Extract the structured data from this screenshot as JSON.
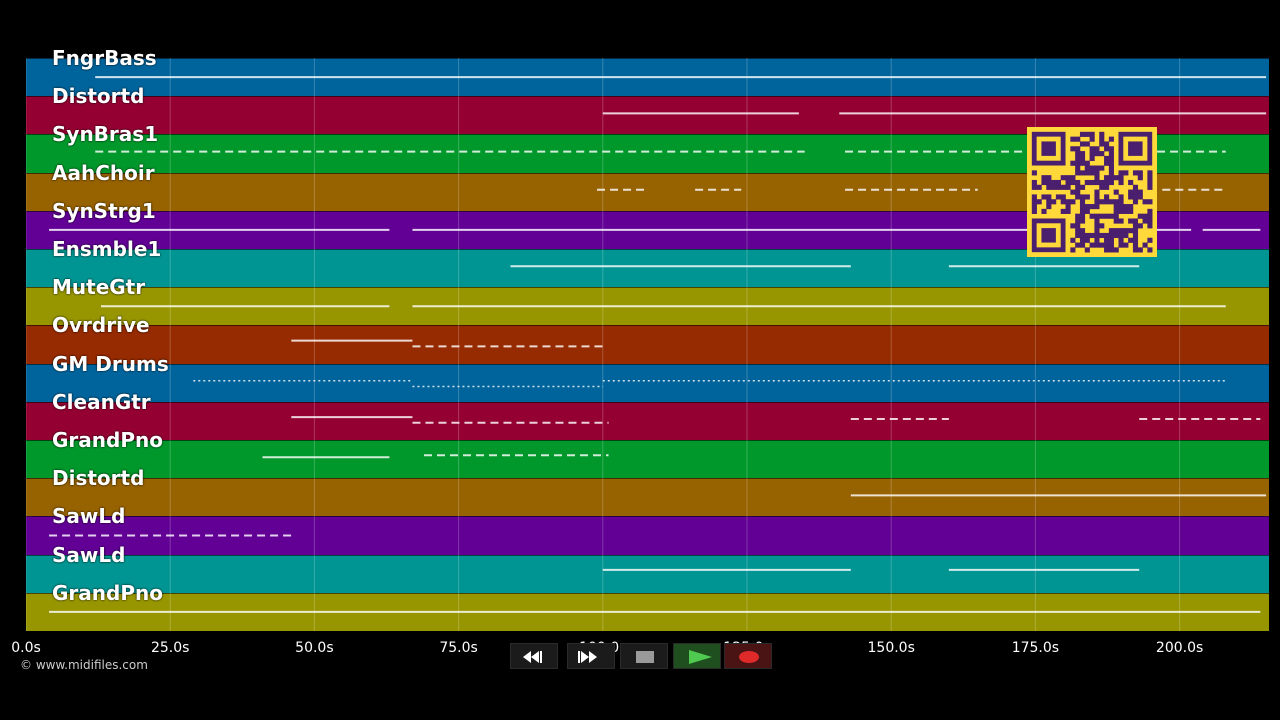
{
  "tracks": [
    {
      "name": "FngrBass",
      "color": "#00649c"
    },
    {
      "name": "Distortd",
      "color": "#950033"
    },
    {
      "name": "SynBras1",
      "color": "#00982b"
    },
    {
      "name": "AahChoir",
      "color": "#976200"
    },
    {
      "name": "SynStrg1",
      "color": "#620096"
    },
    {
      "name": "Ensmble1",
      "color": "#009592"
    },
    {
      "name": "MuteGtr",
      "color": "#979600"
    },
    {
      "name": "Ovrdrive",
      "color": "#962a00"
    },
    {
      "name": "GM Drums",
      "color": "#00649c"
    },
    {
      "name": "CleanGtr",
      "color": "#950033"
    },
    {
      "name": "GrandPno",
      "color": "#00982b"
    },
    {
      "name": "Distortd",
      "color": "#976200"
    },
    {
      "name": "SawLd",
      "color": "#620096"
    },
    {
      "name": "SawLd",
      "color": "#009592"
    },
    {
      "name": "GrandPno",
      "color": "#979600"
    }
  ],
  "time_axis": {
    "ticks": [
      "0.0s",
      "25.0s",
      "50.0s",
      "75.0s",
      "100.0s",
      "125.0s",
      "150.0s",
      "175.0s",
      "200.0s"
    ],
    "tick_seconds": [
      0,
      25,
      50,
      75,
      100,
      125,
      150,
      175,
      200
    ],
    "max_seconds": 215.5
  },
  "copyright": "© www.midifiles.com",
  "transport": {
    "rewind": "rewind-icon",
    "fast_forward": "fast-forward-icon",
    "stop": "stop-icon",
    "play": "play-icon",
    "record": "record-icon"
  },
  "qr_code": "qr-code-icon"
}
